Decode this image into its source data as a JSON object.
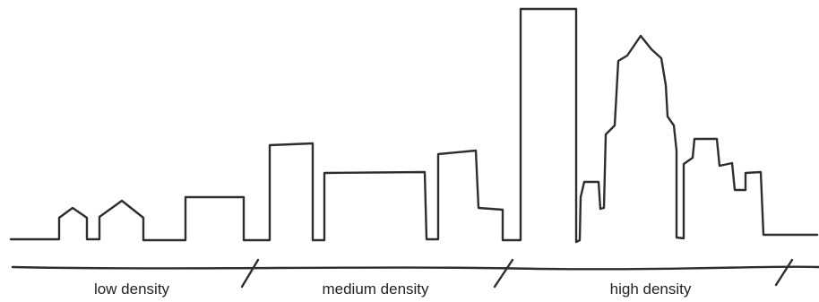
{
  "labels": {
    "low": "low density",
    "medium": "medium density",
    "high": "high density"
  },
  "stroke_color": "#2e2e2e"
}
